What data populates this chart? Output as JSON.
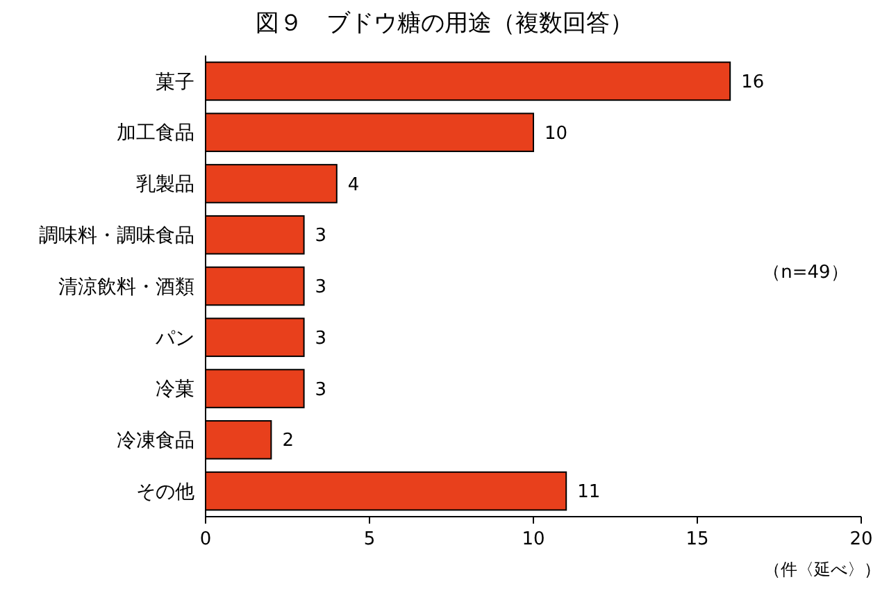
{
  "chart_data": {
    "type": "bar",
    "orientation": "horizontal",
    "title": "図９　ブドウ糖の用途（複数回答）",
    "categories": [
      "菓子",
      "加工食品",
      "乳製品",
      "調味料・調味食品",
      "清涼飲料・酒類",
      "パン",
      "冷菓",
      "冷凍食品",
      "その他"
    ],
    "values": [
      16,
      10,
      4,
      3,
      3,
      3,
      3,
      2,
      11
    ],
    "color": "#e8401c",
    "xlim": [
      0,
      20
    ],
    "xticks": [
      0,
      5,
      10,
      15,
      20
    ],
    "xlabel": "（件〈延べ〉）",
    "annotations": [
      "（n=49）"
    ],
    "data_labels": true,
    "grid": false
  }
}
